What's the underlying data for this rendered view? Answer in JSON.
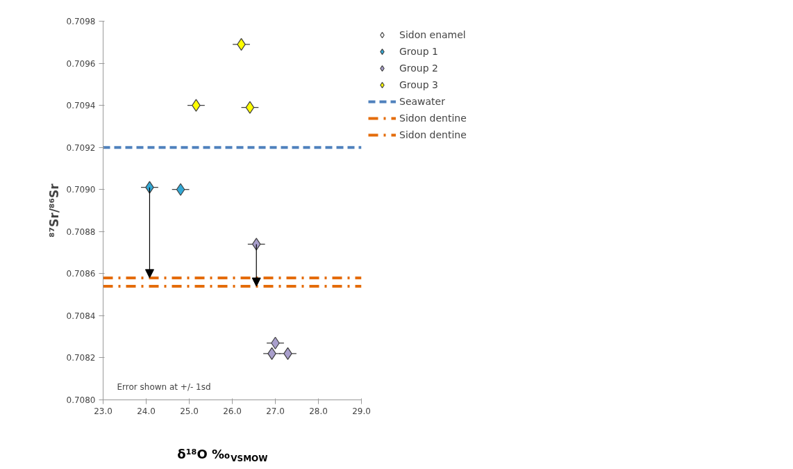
{
  "chart_data": {
    "type": "scatter",
    "xlabel": "δ¹⁸O ‰$_{VSMOW}$",
    "ylabel": "⁸⁷Sr/⁸⁶Sr",
    "xlim": [
      23.0,
      29.0
    ],
    "xticks": [
      {
        "value": 23,
        "label": "23.0"
      },
      {
        "value": 24,
        "label": "24.0"
      },
      {
        "value": 25,
        "label": "25.0"
      },
      {
        "value": 26,
        "label": "26.0"
      },
      {
        "value": 27,
        "label": "27.0"
      },
      {
        "value": 28,
        "label": "28.0"
      },
      {
        "value": 29,
        "label": "29.0"
      }
    ],
    "ylim": [
      0.708,
      0.7098
    ],
    "yticks": [
      {
        "value": 0.708,
        "label": "0.7080"
      },
      {
        "value": 0.7082,
        "label": "0.7082"
      },
      {
        "value": 0.7084,
        "label": "0.7084"
      },
      {
        "value": 0.7086,
        "label": "0.7086"
      },
      {
        "value": 0.7088,
        "label": "0.7088"
      },
      {
        "value": 0.709,
        "label": "0.7090"
      },
      {
        "value": 0.7092,
        "label": "0.7092"
      },
      {
        "value": 0.7094,
        "label": "0.7094"
      },
      {
        "value": 0.7096,
        "label": "0.7096"
      },
      {
        "value": 0.7098,
        "label": "0.7098"
      }
    ],
    "marker": "diamond",
    "grid": false,
    "legend": "top right",
    "series": [
      {
        "name": "Sidon enamel",
        "color": "#ffffff"
      },
      {
        "name": "Group 1",
        "color": "#33a9d6",
        "x": [
          24.08,
          24.8
        ],
        "values": [
          0.70901,
          0.709
        ],
        "xerrors": [
          0.2,
          0.2
        ]
      },
      {
        "name": "Group 2",
        "color": "#a99fcc",
        "x": [
          26.56,
          27.0,
          26.92,
          27.29
        ],
        "values": [
          0.70874,
          0.70827,
          0.70822,
          0.70822
        ],
        "xerrors": [
          0.2,
          0.2,
          0.2,
          0.2
        ]
      },
      {
        "name": "Group 3",
        "color": "#ffff00",
        "x": [
          26.21,
          25.16,
          26.41
        ],
        "values": [
          0.70969,
          0.7094,
          0.70939
        ],
        "xerrors": [
          0.2,
          0.2,
          0.2
        ]
      }
    ],
    "ref_lines": [
      {
        "axis": "y",
        "value": 0.7092,
        "label": "Seawater",
        "color": "#4f81bd",
        "line_style": "dashed"
      },
      {
        "axis": "y",
        "value": 0.70858,
        "label": "Sidon dentine",
        "color": "#e46c0a",
        "line_style": "dashdot"
      },
      {
        "axis": "y",
        "value": 0.70854,
        "label": "Sidon dentine",
        "color": "#e46c0a",
        "line_style": "dashdot"
      }
    ],
    "annotations": [
      "Error shown at +/- 1sd"
    ]
  }
}
